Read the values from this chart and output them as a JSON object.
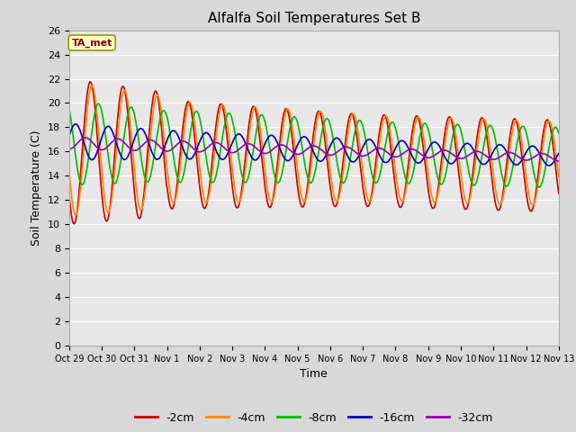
{
  "title": "Alfalfa Soil Temperatures Set B",
  "xlabel": "Time",
  "ylabel": "Soil Temperature (C)",
  "ylim": [
    0,
    26
  ],
  "yticks": [
    0,
    2,
    4,
    6,
    8,
    10,
    12,
    14,
    16,
    18,
    20,
    22,
    24,
    26
  ],
  "xtick_labels": [
    "Oct 29",
    "Oct 30",
    "Oct 31",
    "Nov 1",
    "Nov 2",
    "Nov 3",
    "Nov 4",
    "Nov 5",
    "Nov 6",
    "Nov 7",
    "Nov 8",
    "Nov 9",
    "Nov 10",
    "Nov 11",
    "Nov 12",
    "Nov 13"
  ],
  "plot_bg_color": "#e8e8e8",
  "fig_bg_color": "#d8d8d8",
  "series_colors": [
    "#cc0000",
    "#ff8800",
    "#00bb00",
    "#0000bb",
    "#9900aa"
  ],
  "series_labels": [
    "-2cm",
    "-4cm",
    "-8cm",
    "-16cm",
    "-32cm"
  ],
  "annotation_text": "TA_met",
  "annotation_bg": "#ffffcc",
  "annotation_border": "#999900"
}
